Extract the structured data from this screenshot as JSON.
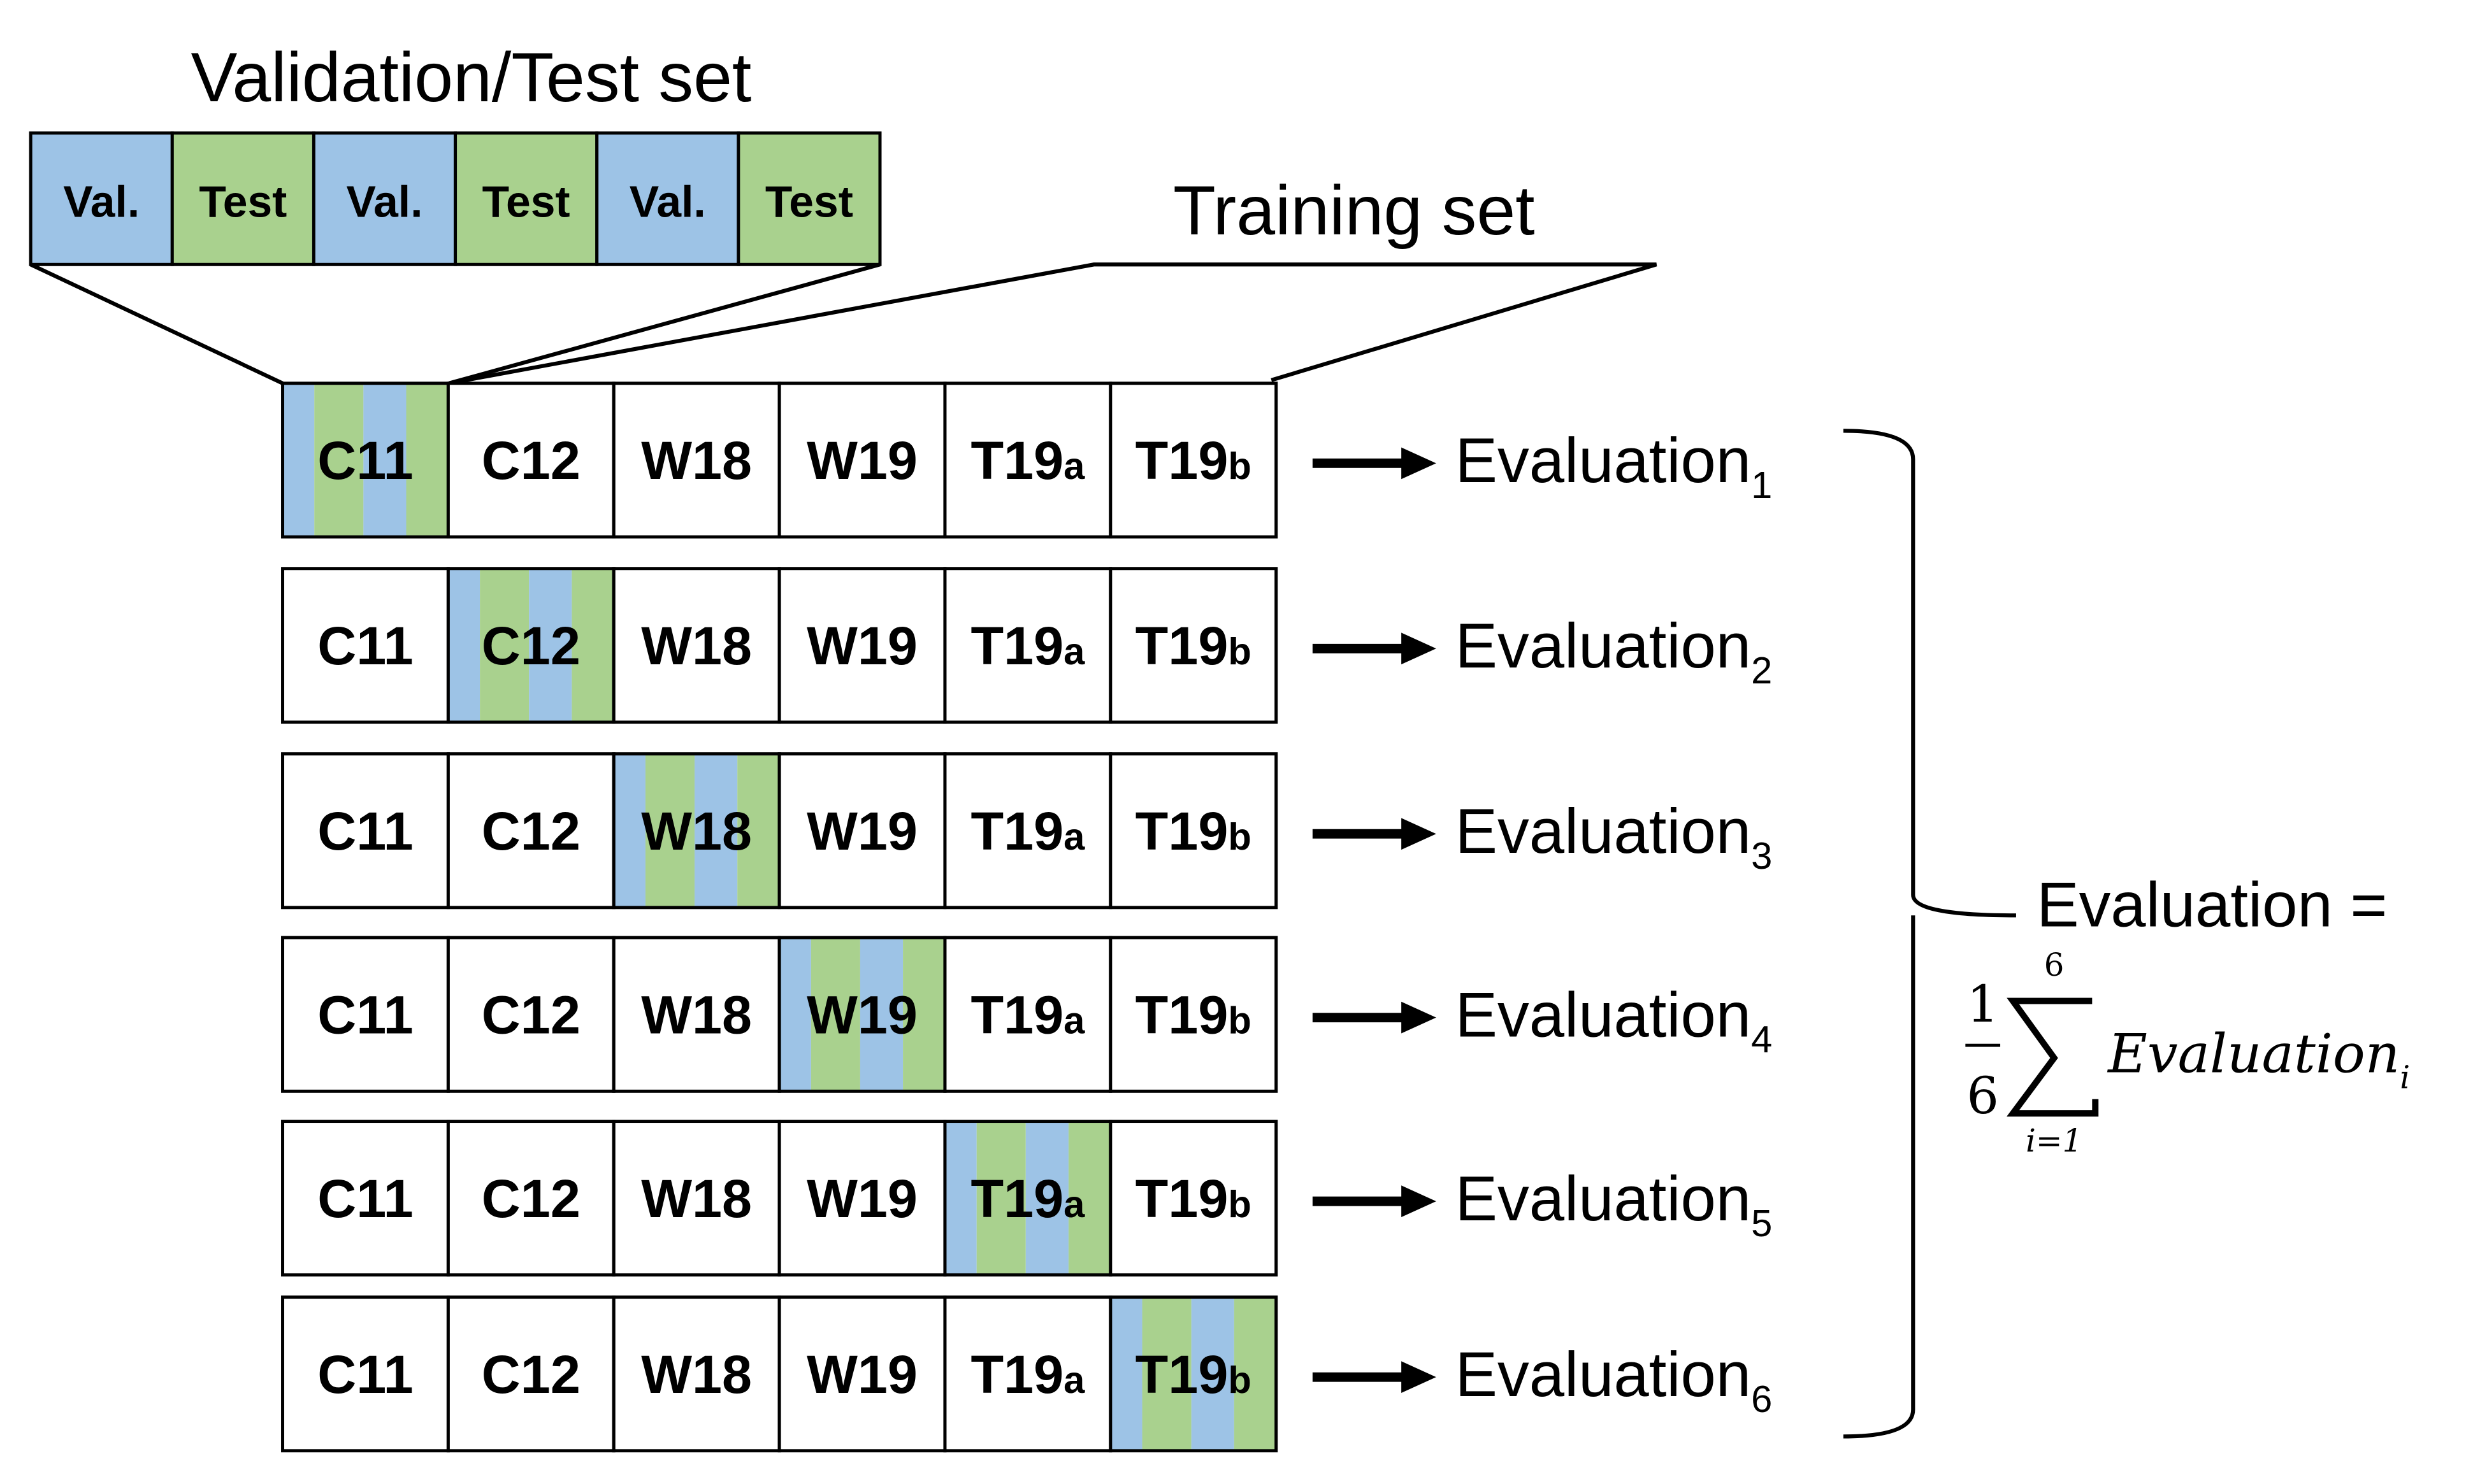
{
  "validation_test_set": {
    "title": "Validation/Test set",
    "segments": [
      {
        "label": "Val.",
        "kind": "val"
      },
      {
        "label": "Test",
        "kind": "test"
      },
      {
        "label": "Val.",
        "kind": "val"
      },
      {
        "label": "Test",
        "kind": "test"
      },
      {
        "label": "Val.",
        "kind": "val"
      },
      {
        "label": "Test",
        "kind": "test"
      }
    ]
  },
  "training_set": {
    "title": "Training set"
  },
  "datasets": [
    {
      "main": "C11",
      "sub": ""
    },
    {
      "main": "C12",
      "sub": ""
    },
    {
      "main": "W18",
      "sub": ""
    },
    {
      "main": "W19",
      "sub": ""
    },
    {
      "main": "T19",
      "sub": "a"
    },
    {
      "main": "T19",
      "sub": "b"
    }
  ],
  "evaluations": [
    {
      "label": "Evaluation",
      "index": "1"
    },
    {
      "label": "Evaluation",
      "index": "2"
    },
    {
      "label": "Evaluation",
      "index": "3"
    },
    {
      "label": "Evaluation",
      "index": "4"
    },
    {
      "label": "Evaluation",
      "index": "5"
    },
    {
      "label": "Evaluation",
      "index": "6"
    }
  ],
  "formula": {
    "lhs": "Evaluation =",
    "numerator": "1",
    "denominator": "6",
    "sum_upper": "6",
    "sum_lower": "i=1",
    "term": "Evaluation",
    "term_sub": "i"
  },
  "colors": {
    "val": "#9DC3E6",
    "test": "#A9D18E",
    "line": "#000000"
  }
}
